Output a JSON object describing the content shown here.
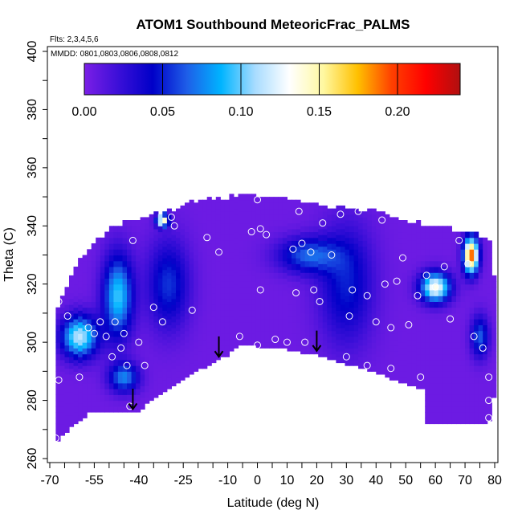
{
  "chart_data": {
    "type": "heatmap",
    "title": "ATOM1 Southbound MeteoricFrac_PALMS",
    "annotations": [
      "Flts: 2,3,4,5,6",
      "MMDD: 0801,0803,0806,0808,0812"
    ],
    "xlabel": "Latitude (deg N)",
    "ylabel": "Theta (C)",
    "xlim": [
      -70,
      80
    ],
    "ylim": [
      260,
      400
    ],
    "x_ticks": [
      -70,
      -55,
      -40,
      -25,
      -10,
      0,
      10,
      20,
      30,
      40,
      50,
      60,
      70,
      80
    ],
    "x_tick_labels": [
      "-70",
      "-55",
      "-40",
      "-25",
      "-10",
      "0",
      "10",
      "20",
      "30",
      "40",
      "50",
      "60",
      "70",
      "80"
    ],
    "y_ticks": [
      260,
      280,
      300,
      320,
      340,
      360,
      380,
      400
    ],
    "y_tick_labels": [
      "260",
      "280",
      "300",
      "320",
      "340",
      "360",
      "380",
      "400"
    ],
    "colorbar": {
      "range": [
        0,
        0.24
      ],
      "ticks": [
        0,
        0.05,
        0.1,
        0.15,
        0.2
      ],
      "tick_labels": [
        "0.00",
        "0.05",
        "0.10",
        "0.15",
        "0.20"
      ],
      "colors": [
        "#7b1fe6",
        "#3b0fd8",
        "#0000c8",
        "#1e5ee8",
        "#00b4ff",
        "#a8dcff",
        "#ffffff",
        "#fff8a0",
        "#ffc000",
        "#ff4000",
        "#ff0000",
        "#b01010"
      ]
    },
    "field": {
      "background_value": 0.005,
      "features": [
        {
          "lat": -60,
          "theta": 302,
          "value": 0.11,
          "spread_lat": 6,
          "spread_theta": 7
        },
        {
          "lat": -47,
          "theta": 316,
          "value": 0.09,
          "spread_lat": 5,
          "spread_theta": 14
        },
        {
          "lat": -45,
          "theta": 288,
          "value": 0.07,
          "spread_lat": 5,
          "spread_theta": 5
        },
        {
          "lat": -30,
          "theta": 320,
          "value": 0.05,
          "spread_lat": 7,
          "spread_theta": 15
        },
        {
          "lat": 17,
          "theta": 330,
          "value": 0.06,
          "spread_lat": 10,
          "spread_theta": 6
        },
        {
          "lat": 30,
          "theta": 320,
          "value": 0.045,
          "spread_lat": 9,
          "spread_theta": 20
        },
        {
          "lat": 60,
          "theta": 319,
          "value": 0.13,
          "spread_lat": 5,
          "spread_theta": 5
        },
        {
          "lat": 72,
          "theta": 330,
          "value": 0.19,
          "spread_lat": 2.5,
          "spread_theta": 6
        },
        {
          "lat": 75,
          "theta": 302,
          "value": 0.06,
          "spread_lat": 3,
          "spread_theta": 7
        },
        {
          "lat": -32,
          "theta": 342,
          "value": 0.15,
          "spread_lat": 2,
          "spread_theta": 2
        }
      ],
      "domain_top": [
        [
          -68,
          310
        ],
        [
          -60,
          328
        ],
        [
          -50,
          338
        ],
        [
          -40,
          342
        ],
        [
          -28,
          345
        ],
        [
          -20,
          348
        ],
        [
          -10,
          349
        ],
        [
          0,
          350
        ],
        [
          10,
          348
        ],
        [
          20,
          346
        ],
        [
          30,
          345
        ],
        [
          40,
          344
        ],
        [
          50,
          341
        ],
        [
          60,
          339
        ],
        [
          70,
          337
        ],
        [
          78,
          335
        ],
        [
          80,
          320
        ]
      ],
      "domain_bottom": [
        [
          -68,
          266
        ],
        [
          -64,
          270
        ],
        [
          -57,
          276
        ],
        [
          -40,
          277
        ],
        [
          -25,
          288
        ],
        [
          -10,
          296
        ],
        [
          -6,
          300
        ],
        [
          0,
          299
        ],
        [
          10,
          298
        ],
        [
          20,
          296
        ],
        [
          30,
          293
        ],
        [
          40,
          290
        ],
        [
          50,
          286
        ],
        [
          56,
          284
        ],
        [
          56,
          272
        ],
        [
          78,
          272
        ],
        [
          80,
          283
        ]
      ]
    },
    "sample_points": [
      {
        "lat": -68,
        "theta": 267
      },
      {
        "lat": -67,
        "theta": 287
      },
      {
        "lat": -67,
        "theta": 314
      },
      {
        "lat": -64,
        "theta": 309
      },
      {
        "lat": -60,
        "theta": 288
      },
      {
        "lat": -57,
        "theta": 305
      },
      {
        "lat": -55,
        "theta": 303
      },
      {
        "lat": -53,
        "theta": 307
      },
      {
        "lat": -51,
        "theta": 302
      },
      {
        "lat": -49,
        "theta": 295
      },
      {
        "lat": -48,
        "theta": 307
      },
      {
        "lat": -46,
        "theta": 298
      },
      {
        "lat": -45,
        "theta": 303
      },
      {
        "lat": -44,
        "theta": 292
      },
      {
        "lat": -43,
        "theta": 278
      },
      {
        "lat": -42,
        "theta": 335
      },
      {
        "lat": -40,
        "theta": 300
      },
      {
        "lat": -38,
        "theta": 292
      },
      {
        "lat": -35,
        "theta": 312
      },
      {
        "lat": -32,
        "theta": 307
      },
      {
        "lat": -29,
        "theta": 343
      },
      {
        "lat": -28,
        "theta": 340
      },
      {
        "lat": -22,
        "theta": 311
      },
      {
        "lat": -17,
        "theta": 336
      },
      {
        "lat": -13,
        "theta": 331
      },
      {
        "lat": -6,
        "theta": 302
      },
      {
        "lat": -2,
        "theta": 338
      },
      {
        "lat": 0,
        "theta": 349
      },
      {
        "lat": 1,
        "theta": 318
      },
      {
        "lat": 1,
        "theta": 339
      },
      {
        "lat": 0,
        "theta": 299
      },
      {
        "lat": 3,
        "theta": 337
      },
      {
        "lat": 6,
        "theta": 301
      },
      {
        "lat": 10,
        "theta": 300
      },
      {
        "lat": 12,
        "theta": 332
      },
      {
        "lat": 13,
        "theta": 317
      },
      {
        "lat": 14,
        "theta": 345
      },
      {
        "lat": 15,
        "theta": 334
      },
      {
        "lat": 16,
        "theta": 300
      },
      {
        "lat": 18,
        "theta": 331
      },
      {
        "lat": 19,
        "theta": 318
      },
      {
        "lat": 21,
        "theta": 314
      },
      {
        "lat": 22,
        "theta": 341
      },
      {
        "lat": 25,
        "theta": 330
      },
      {
        "lat": 28,
        "theta": 344
      },
      {
        "lat": 31,
        "theta": 309
      },
      {
        "lat": 32,
        "theta": 318
      },
      {
        "lat": 34,
        "theta": 345
      },
      {
        "lat": 37,
        "theta": 316
      },
      {
        "lat": 40,
        "theta": 307
      },
      {
        "lat": 42,
        "theta": 342
      },
      {
        "lat": 43,
        "theta": 320
      },
      {
        "lat": 45,
        "theta": 305
      },
      {
        "lat": 47,
        "theta": 321
      },
      {
        "lat": 49,
        "theta": 329
      },
      {
        "lat": 51,
        "theta": 306
      },
      {
        "lat": 54,
        "theta": 316
      },
      {
        "lat": 55,
        "theta": 288
      },
      {
        "lat": 57,
        "theta": 323
      },
      {
        "lat": 60,
        "theta": 319
      },
      {
        "lat": 63,
        "theta": 326
      },
      {
        "lat": 65,
        "theta": 308
      },
      {
        "lat": 68,
        "theta": 335
      },
      {
        "lat": 71,
        "theta": 327
      },
      {
        "lat": 73,
        "theta": 302
      },
      {
        "lat": 76,
        "theta": 298
      },
      {
        "lat": 78,
        "theta": 288
      },
      {
        "lat": 78,
        "theta": 280
      },
      {
        "lat": 78,
        "theta": 274
      },
      {
        "lat": 30,
        "theta": 295
      },
      {
        "lat": 37,
        "theta": 292
      },
      {
        "lat": 45,
        "theta": 291
      }
    ],
    "arrows": [
      {
        "lat": -42,
        "theta_from": 284,
        "theta_to": 277
      },
      {
        "lat": -13,
        "theta_from": 302,
        "theta_to": 295
      },
      {
        "lat": 20,
        "theta_from": 304,
        "theta_to": 297
      }
    ]
  }
}
